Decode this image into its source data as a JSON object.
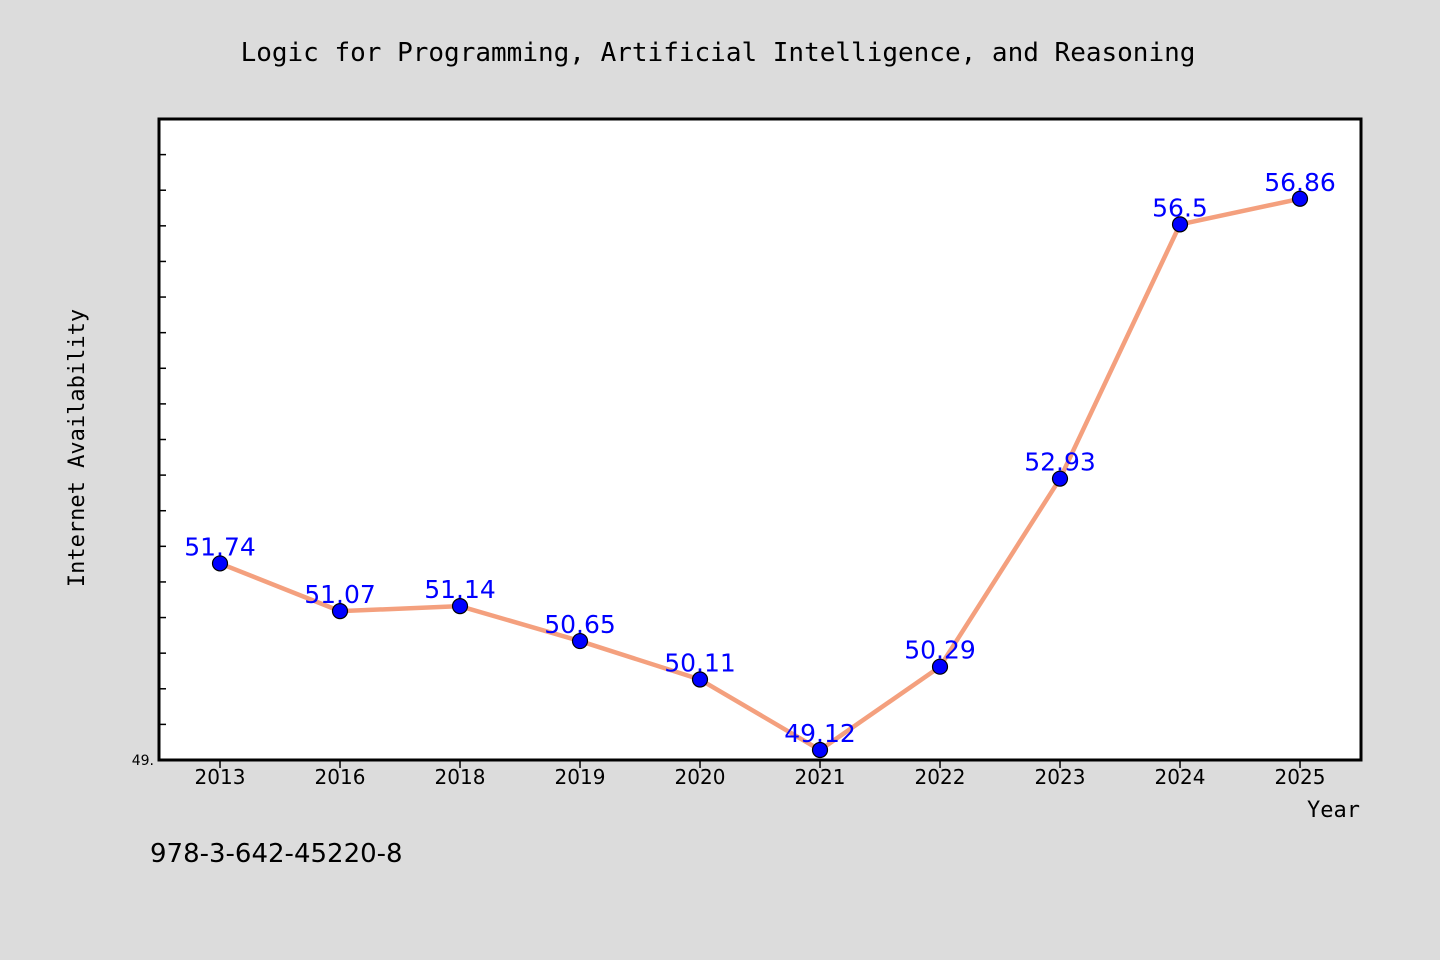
{
  "chart_data": {
    "type": "line",
    "title": "Logic for Programming, Artificial Intelligence, and Reasoning",
    "xlabel": "Year",
    "ylabel": "Internet Availability",
    "categories": [
      "2013",
      "2016",
      "2018",
      "2019",
      "2020",
      "2021",
      "2022",
      "2023",
      "2024",
      "2025"
    ],
    "values": [
      51.74,
      51.07,
      51.14,
      50.65,
      50.11,
      49.12,
      50.29,
      52.93,
      56.5,
      56.86
    ],
    "data_labels": [
      "51.74",
      "51.07",
      "51.14",
      "50.65",
      "50.11",
      "49.12",
      "50.29",
      "52.93",
      "56.5",
      "56.86"
    ],
    "y_tick_label": "49.",
    "ylim": [
      48.98,
      57.98
    ],
    "grid": false,
    "line_color": "#f4a07e",
    "marker_color": "#0000ff",
    "plot_background": "#ffffff",
    "figure_background": "#dcdcdc"
  },
  "footer": {
    "isbn": "978-3-642-45220-8"
  }
}
